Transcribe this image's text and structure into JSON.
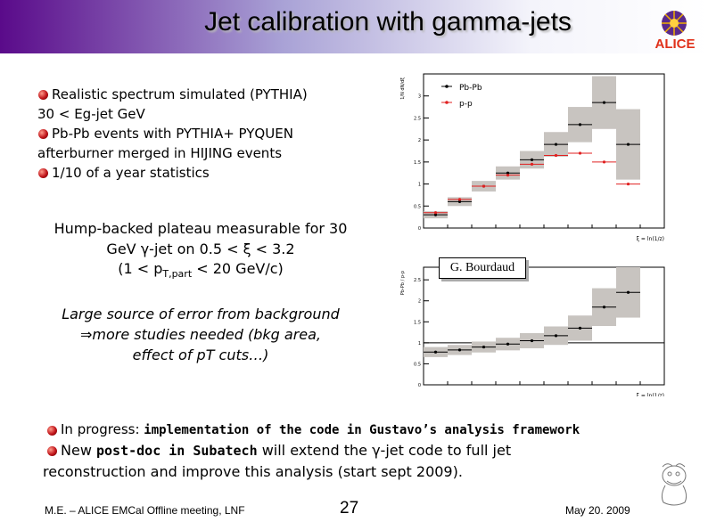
{
  "title": "Jet calibration with gamma-jets",
  "logo": {
    "text": "ALICE",
    "icon": "alice-logo-icon"
  },
  "bullets_top": [
    {
      "line1": "Realistic spectrum simulated (PYTHIA)",
      "line2": "30 < Eg-jet GeV"
    },
    {
      "line1": "Pb-Pb events with PYTHIA+ PYQUEN",
      "line2": "afterburner merged in HIJING events"
    },
    {
      "line1": "1/10 of a year statistics"
    }
  ],
  "hump": {
    "line1": "Hump-backed plateau measurable for 30",
    "line2": "GeV γ-jet on 0.5 < ξ < 3.2",
    "line3_pre": "(1 < p",
    "line3_sub": "T,part",
    "line3_post": " < 20 GeV/c)"
  },
  "error": {
    "line1": "Large source of error from background",
    "line2": "⇒more studies needed (bkg area,",
    "line3": "effect of pT cuts…)"
  },
  "bottom": {
    "b1_pre": "In progress: ",
    "b1_bold": "implementation of the code in Gustavo’s analysis framework",
    "b2_pre": "New ",
    "b2_bold": "post-doc in Subatech",
    "b2_post": " will extend the γ-jet code to full jet",
    "b2_line2": "reconstruction and improve this analysis (start sept 2009)."
  },
  "credit": "G. Bourdaud",
  "footer": {
    "left": "M.E. – ALICE EMCal Offline meeting, LNF",
    "page": "27",
    "date": "May 20. 2009"
  },
  "chart_data": [
    {
      "type": "scatter",
      "ylabel": "1/N dN/dξ",
      "xlabel": "ξ = ln(1/z)",
      "yticks": [
        "0",
        "0.5",
        "1",
        "1.5",
        "2",
        "2.5",
        "3"
      ],
      "ylim": [
        0,
        3.5
      ],
      "xlim": [
        0,
        5
      ],
      "legend": [
        "Pb-Pb",
        "p-p"
      ],
      "series": [
        {
          "name": "Pb-Pb",
          "color": "#000000",
          "x": [
            0.25,
            0.75,
            1.25,
            1.75,
            2.25,
            2.75,
            3.25,
            3.75,
            4.25
          ],
          "y": [
            0.3,
            0.6,
            0.95,
            1.25,
            1.55,
            1.9,
            2.35,
            2.85,
            1.9
          ],
          "err": [
            0.08,
            0.1,
            0.12,
            0.15,
            0.2,
            0.28,
            0.4,
            0.6,
            0.8
          ]
        },
        {
          "name": "p-p",
          "color": "#e02020",
          "x": [
            0.25,
            0.75,
            1.25,
            1.75,
            2.25,
            2.75,
            3.25,
            3.75,
            4.25
          ],
          "y": [
            0.35,
            0.65,
            0.95,
            1.2,
            1.45,
            1.65,
            1.7,
            1.5,
            1.0
          ],
          "err": [
            0.03,
            0.03,
            0.04,
            0.04,
            0.05,
            0.05,
            0.06,
            0.07,
            0.09
          ]
        }
      ]
    },
    {
      "type": "scatter",
      "ylabel": "Pb-Pb / p-p",
      "xlabel": "ξ = ln(1/z)",
      "yticks": [
        "0",
        "0.5",
        "1",
        "1.5",
        "2",
        "2.5"
      ],
      "ylim": [
        0,
        2.8
      ],
      "xlim": [
        0,
        5
      ],
      "refline": 1,
      "series": [
        {
          "name": "ratio",
          "color": "#000000",
          "x": [
            0.25,
            0.75,
            1.25,
            1.75,
            2.25,
            2.75,
            3.25,
            3.75,
            4.25
          ],
          "y": [
            0.78,
            0.83,
            0.9,
            0.97,
            1.05,
            1.17,
            1.35,
            1.85,
            2.2
          ],
          "err": [
            0.12,
            0.12,
            0.13,
            0.15,
            0.18,
            0.22,
            0.3,
            0.45,
            0.6
          ]
        }
      ]
    }
  ]
}
